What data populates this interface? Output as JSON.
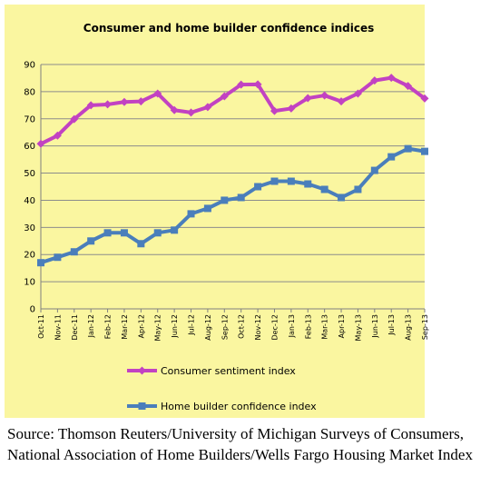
{
  "chart_data": {
    "type": "line",
    "title": "Consumer and home builder confidence indices",
    "xlabel": "",
    "ylabel": "",
    "ylim": [
      0,
      90
    ],
    "yticks": [
      0,
      10,
      20,
      30,
      40,
      50,
      60,
      70,
      80,
      90
    ],
    "grid": "horizontal",
    "legend_position": "bottom",
    "background_color": "#FAF6A0",
    "categories": [
      "Oct-11",
      "Nov-11",
      "Dec-11",
      "Jan-12",
      "Feb-12",
      "Mar-12",
      "Apr-12",
      "May-12",
      "Jun-12",
      "Jul-12",
      "Aug-12",
      "Sep-12",
      "Oct-12",
      "Nov-12",
      "Dec-12",
      "Jan-13",
      "Feb-13",
      "Mar-13",
      "Apr-13",
      "May-13",
      "Jun-13",
      "Jul-13",
      "Aug-13",
      "Sep-13"
    ],
    "series": [
      {
        "name": "Consumer sentiment index",
        "color": "#C242C2",
        "marker": "diamond",
        "values": [
          60.8,
          63.8,
          69.9,
          75.0,
          75.3,
          76.2,
          76.4,
          79.3,
          73.2,
          72.3,
          74.3,
          78.3,
          82.6,
          82.7,
          72.9,
          73.8,
          77.6,
          78.6,
          76.4,
          79.3,
          84.1,
          85.1,
          82.1,
          77.5
        ]
      },
      {
        "name": "Home builder confidence index",
        "color": "#4A7EBB",
        "marker": "square",
        "values": [
          17,
          19,
          21,
          25,
          28,
          28,
          24,
          28,
          29,
          35,
          37,
          40,
          41,
          45,
          47,
          47,
          46,
          44,
          41,
          44,
          51,
          56,
          59,
          58
        ]
      }
    ]
  },
  "source_note": "Source:  Thomson Reuters/University of Michigan Surveys of Consumers, National Association of Home Builders/Wells Fargo Housing Market Index"
}
